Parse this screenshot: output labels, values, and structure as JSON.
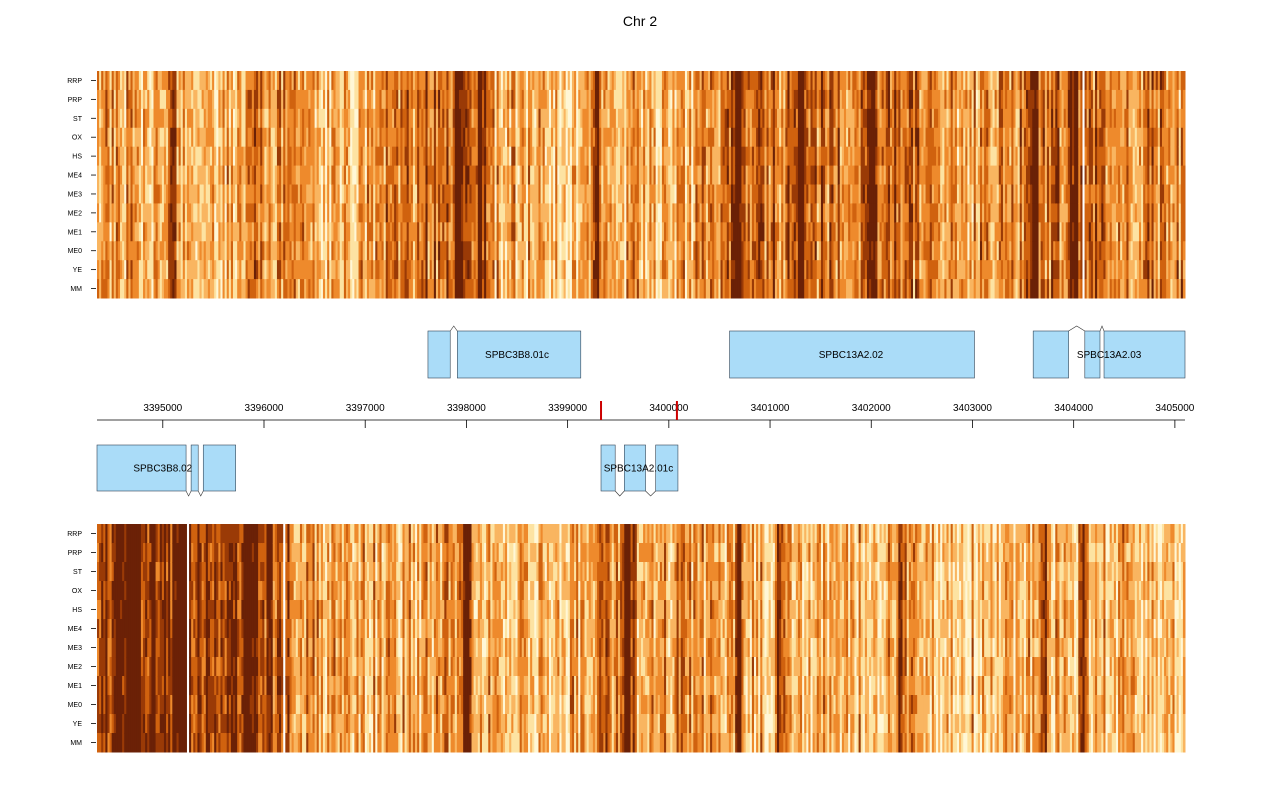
{
  "chart_data": {
    "type": "heatmap",
    "title": "Chr 2",
    "xlabel": "",
    "ylabel": "",
    "x_range": [
      3394350,
      3405100
    ],
    "axis_ticks": [
      3395000,
      3396000,
      3397000,
      3398000,
      3399000,
      3400000,
      3401000,
      3402000,
      3403000,
      3404000,
      3405000
    ],
    "axis_tick_labels": [
      "3395000",
      "3396000",
      "3397000",
      "3398000",
      "3399000",
      "3400000",
      "3401000",
      "3402000",
      "3403000",
      "3404000",
      "3405000"
    ],
    "markers": [
      3399330,
      3400080
    ],
    "marker_color": "#cc0000",
    "row_labels": [
      "RRP",
      "PRP",
      "ST",
      "OX",
      "HS",
      "ME4",
      "ME3",
      "ME2",
      "ME1",
      "ME0",
      "YE",
      "MM"
    ],
    "color_scale": [
      "#fff7d6",
      "#fde3a2",
      "#f9b560",
      "#ee8a2c",
      "#d0620f",
      "#9a3a06",
      "#6b2106"
    ],
    "heatmaps": [
      {
        "strand": "forward",
        "column_count": 520,
        "intensity_profile": [
          [
            3394350,
            0.45
          ],
          [
            3395000,
            0.42
          ],
          [
            3395600,
            0.35
          ],
          [
            3396000,
            0.55
          ],
          [
            3396500,
            0.3
          ],
          [
            3397000,
            0.4
          ],
          [
            3397400,
            0.55
          ],
          [
            3397700,
            0.62
          ],
          [
            3398000,
            0.55
          ],
          [
            3398500,
            0.4
          ],
          [
            3399000,
            0.3
          ],
          [
            3399500,
            0.38
          ],
          [
            3400000,
            0.34
          ],
          [
            3400700,
            0.65
          ],
          [
            3401000,
            0.6
          ],
          [
            3401500,
            0.58
          ],
          [
            3402000,
            0.62
          ],
          [
            3402500,
            0.55
          ],
          [
            3403000,
            0.45
          ],
          [
            3403500,
            0.55
          ],
          [
            3404000,
            0.6
          ],
          [
            3404600,
            0.55
          ],
          [
            3405100,
            0.5
          ]
        ],
        "dark_bands": [
          3395090,
          3397930,
          3398150,
          3399300,
          3400680,
          3401300,
          3402000,
          3403600,
          3404000
        ],
        "white_lines": [
          3404090
        ]
      },
      {
        "strand": "reverse",
        "column_count": 520,
        "intensity_profile": [
          [
            3394350,
            0.78
          ],
          [
            3394800,
            0.85
          ],
          [
            3395200,
            0.8
          ],
          [
            3395600,
            0.82
          ],
          [
            3396000,
            0.8
          ],
          [
            3396200,
            0.6
          ],
          [
            3396600,
            0.42
          ],
          [
            3397000,
            0.38
          ],
          [
            3397500,
            0.4
          ],
          [
            3398000,
            0.44
          ],
          [
            3398500,
            0.4
          ],
          [
            3399000,
            0.38
          ],
          [
            3399500,
            0.55
          ],
          [
            3399800,
            0.48
          ],
          [
            3400200,
            0.45
          ],
          [
            3400700,
            0.4
          ],
          [
            3401200,
            0.38
          ],
          [
            3401700,
            0.36
          ],
          [
            3402300,
            0.35
          ],
          [
            3403000,
            0.34
          ],
          [
            3403500,
            0.38
          ],
          [
            3404200,
            0.36
          ],
          [
            3405100,
            0.34
          ]
        ],
        "dark_bands": [
          3394700,
          3395200,
          3395850,
          3398000,
          3399600,
          3400700,
          3401100,
          3402300,
          3403700,
          3404100
        ],
        "white_lines": [
          3395250,
          3396200
        ]
      }
    ],
    "genes": [
      {
        "name": "SPBC3B8.01c",
        "strand": "forward",
        "label_position": 3398500,
        "exons": [
          [
            3397620,
            3397840
          ],
          [
            3397910,
            3399130
          ]
        ]
      },
      {
        "name": "SPBC13A2.02",
        "strand": "forward",
        "label_position": 3401800,
        "exons": [
          [
            3400600,
            3403020
          ]
        ]
      },
      {
        "name": "SPBC13A2.03",
        "strand": "forward",
        "label_position": 3404350,
        "exons": [
          [
            3403600,
            3403950
          ],
          [
            3404110,
            3404260
          ],
          [
            3404300,
            3405100
          ]
        ]
      },
      {
        "name": "SPBC3B8.02",
        "strand": "reverse",
        "label_position": 3395000,
        "exons": [
          [
            3394350,
            3395230
          ],
          [
            3395280,
            3395350
          ],
          [
            3395400,
            3395720
          ]
        ]
      },
      {
        "name": "SPBC13A2.01c",
        "strand": "reverse",
        "label_position": 3399700,
        "exons": [
          [
            3399330,
            3399470
          ],
          [
            3399560,
            3399770
          ],
          [
            3399870,
            3400090
          ]
        ]
      }
    ]
  }
}
